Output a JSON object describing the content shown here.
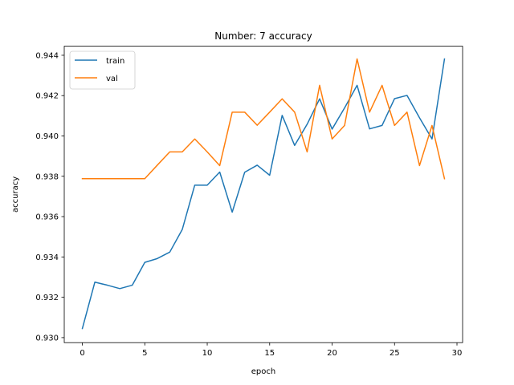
{
  "chart_data": {
    "type": "line",
    "title": "Number: 7 accuracy",
    "xlabel": "epoch",
    "ylabel": "accuracy",
    "xlim": [
      -1.45,
      30.45
    ],
    "ylim": [
      0.92975,
      0.94445
    ],
    "xticks": [
      0,
      5,
      10,
      15,
      20,
      25,
      30
    ],
    "yticks": [
      0.93,
      0.932,
      0.934,
      0.936,
      0.938,
      0.94,
      0.942,
      0.944
    ],
    "ytick_labels": [
      "0.930",
      "0.932",
      "0.934",
      "0.936",
      "0.938",
      "0.940",
      "0.942",
      "0.944"
    ],
    "xtick_labels": [
      "0",
      "5",
      "10",
      "15",
      "20",
      "25",
      "30"
    ],
    "grid": false,
    "legend_position": "upper-left",
    "x": [
      0,
      1,
      2,
      3,
      4,
      5,
      6,
      7,
      8,
      9,
      10,
      11,
      12,
      13,
      14,
      15,
      16,
      17,
      18,
      19,
      20,
      21,
      22,
      23,
      24,
      25,
      26,
      27,
      28,
      29
    ],
    "series": [
      {
        "name": "train",
        "color": "#1f77b4",
        "values": [
          0.93045,
          0.93275,
          0.9326,
          0.93243,
          0.9326,
          0.93373,
          0.93392,
          0.93424,
          0.93536,
          0.93756,
          0.93756,
          0.93821,
          0.93622,
          0.9382,
          0.93855,
          0.93805,
          0.94102,
          0.93953,
          0.94058,
          0.94184,
          0.94034,
          0.94139,
          0.94251,
          0.94035,
          0.94052,
          0.94185,
          0.94201,
          0.9409,
          0.93985,
          0.94382
        ]
      },
      {
        "name": "val",
        "color": "#ff7f0e",
        "values": [
          0.93788,
          0.93788,
          0.93788,
          0.93788,
          0.93788,
          0.93788,
          0.93855,
          0.93921,
          0.93921,
          0.93985,
          0.93921,
          0.93853,
          0.94118,
          0.94118,
          0.94053,
          0.94118,
          0.94184,
          0.94118,
          0.93921,
          0.94251,
          0.93985,
          0.94052,
          0.94382,
          0.94118,
          0.94251,
          0.94052,
          0.94118,
          0.93853,
          0.94052,
          0.93788
        ]
      }
    ]
  }
}
